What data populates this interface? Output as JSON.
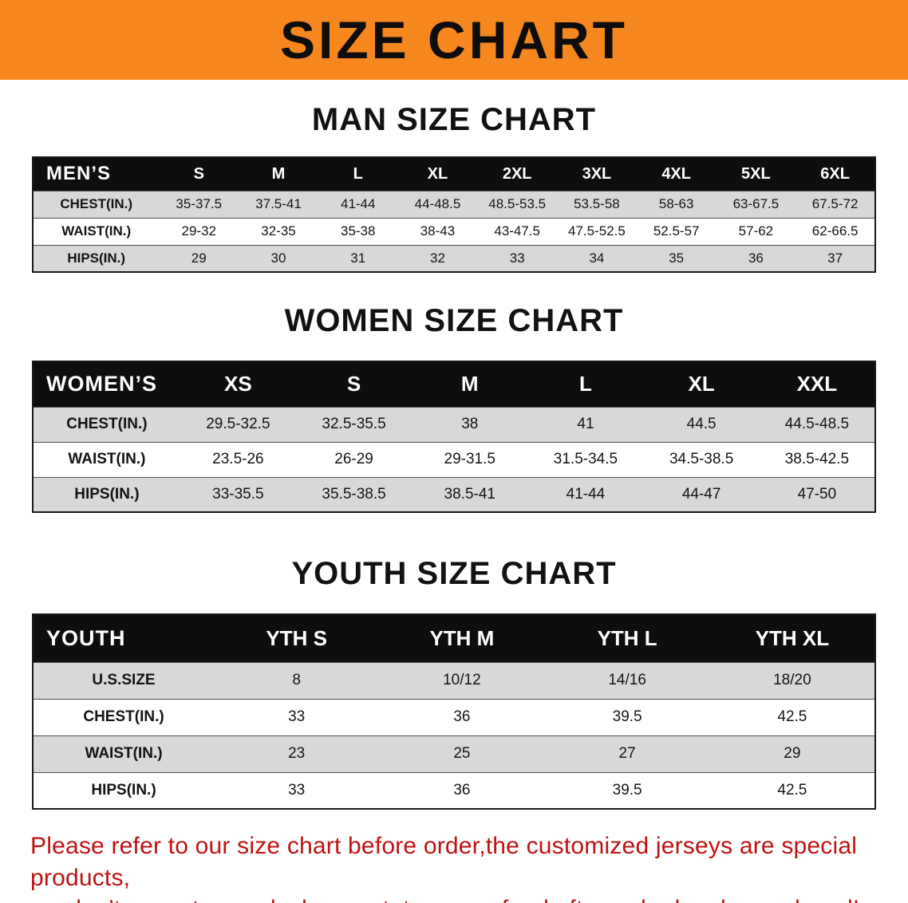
{
  "banner": {
    "title": "SIZE CHART",
    "bg_color": "#f6871f",
    "text_color": "#0d0d0d"
  },
  "sections": [
    {
      "heading": "MAN SIZE CHART",
      "header_label": "MEN’S",
      "columns": [
        "S",
        "M",
        "L",
        "XL",
        "2XL",
        "3XL",
        "4XL",
        "5XL",
        "6XL"
      ],
      "rows": [
        {
          "label": "CHEST(IN.)",
          "values": [
            "35-37.5",
            "37.5-41",
            "41-44",
            "44-48.5",
            "48.5-53.5",
            "53.5-58",
            "58-63",
            "63-67.5",
            "67.5-72"
          ]
        },
        {
          "label": "WAIST(IN.)",
          "values": [
            "29-32",
            "32-35",
            "35-38",
            "38-43",
            "43-47.5",
            "47.5-52.5",
            "52.5-57",
            "57-62",
            "62-66.5"
          ]
        },
        {
          "label": "HIPS(IN.)",
          "values": [
            "29",
            "30",
            "31",
            "32",
            "33",
            "34",
            "35",
            "36",
            "37"
          ]
        }
      ]
    },
    {
      "heading": "WOMEN SIZE CHART",
      "header_label": "WOMEN’S",
      "columns": [
        "XS",
        "S",
        "M",
        "L",
        "XL",
        "XXL"
      ],
      "rows": [
        {
          "label": "CHEST(IN.)",
          "values": [
            "29.5-32.5",
            "32.5-35.5",
            "38",
            "41",
            "44.5",
            "44.5-48.5"
          ]
        },
        {
          "label": "WAIST(IN.)",
          "values": [
            "23.5-26",
            "26-29",
            "29-31.5",
            "31.5-34.5",
            "34.5-38.5",
            "38.5-42.5"
          ]
        },
        {
          "label": "HIPS(IN.)",
          "values": [
            "33-35.5",
            "35.5-38.5",
            "38.5-41",
            "41-44",
            "44-47",
            "47-50"
          ]
        }
      ]
    },
    {
      "heading": "YOUTH SIZE CHART",
      "header_label": "YOUTH",
      "columns": [
        "YTH S",
        "YTH M",
        "YTH L",
        "YTH XL"
      ],
      "rows": [
        {
          "label": "U.S.SIZE",
          "values": [
            "8",
            "10/12",
            "14/16",
            "18/20"
          ]
        },
        {
          "label": "CHEST(IN.)",
          "values": [
            "33",
            "36",
            "39.5",
            "42.5"
          ]
        },
        {
          "label": "WAIST(IN.)",
          "values": [
            "23",
            "25",
            "27",
            "29"
          ]
        },
        {
          "label": "HIPS(IN.)",
          "values": [
            "33",
            "36",
            "39.5",
            "42.5"
          ]
        }
      ]
    }
  ],
  "footer": {
    "line1": "Please refer to our size chart before order,the customized jerseys are special products,",
    "line2": "we don’t accept cancel, change, teturn or refund after order has been placed!",
    "text_color": "#bf1212"
  }
}
